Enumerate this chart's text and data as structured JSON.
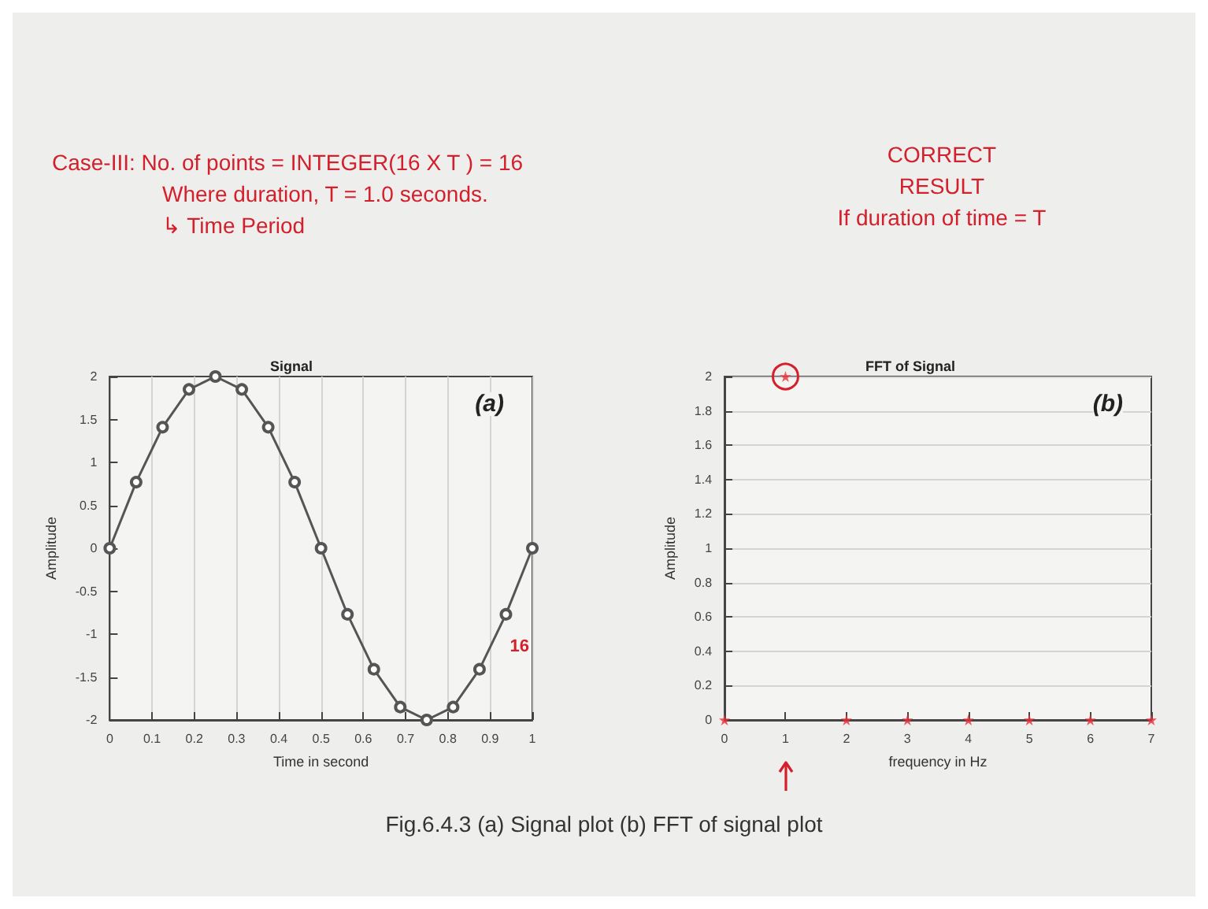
{
  "chart_data": [
    {
      "type": "other",
      "annotations": [
        "Case-III:  No. of points = INTEGER(16 X T ) = 16",
        "Where duration, T = 1.0 seconds.",
        "↳ Time Period"
      ]
    },
    {
      "type": "other",
      "annotations": [
        "CORRECT",
        "RESULT",
        "If duration of time = T"
      ]
    },
    {
      "type": "line",
      "title": "Signal",
      "xlabel": "Time in second",
      "ylabel": "Amplitude",
      "x": [
        0,
        0.0625,
        0.125,
        0.1875,
        0.25,
        0.3125,
        0.375,
        0.4375,
        0.5,
        0.5625,
        0.625,
        0.6875,
        0.75,
        0.8125,
        0.875,
        0.9375,
        1
      ],
      "series": [
        {
          "color": "#555555",
          "values": [
            0,
            0.77,
            1.41,
            1.85,
            2,
            1.85,
            1.41,
            0.77,
            0,
            -0.77,
            -1.41,
            -1.85,
            -2,
            -1.85,
            -1.41,
            -0.77,
            0
          ]
        }
      ],
      "xlim": [
        0,
        1
      ],
      "xticks": [
        0,
        0.1,
        0.2,
        0.3,
        0.4,
        0.5,
        0.6,
        0.7,
        0.8,
        0.9,
        1
      ],
      "ylim": [
        -2,
        2
      ],
      "yticks": [
        -2,
        -1.5,
        -1,
        -0.5,
        0,
        0.5,
        1,
        1.5,
        2
      ],
      "grid": "x",
      "marker": "circle",
      "line_style": "solid",
      "annotations": [
        "(a)",
        "16"
      ]
    },
    {
      "type": "scatter",
      "title": "FFT of Signal",
      "xlabel": "frequency in Hz",
      "ylabel": "Amplitude",
      "x": [
        0,
        1,
        2,
        3,
        4,
        5,
        6,
        7
      ],
      "series": [
        {
          "color": "#e8303a",
          "values": [
            0,
            2,
            0,
            0,
            0,
            0,
            0,
            0
          ]
        }
      ],
      "xlim": [
        0,
        7
      ],
      "xticks": [
        0,
        1,
        2,
        3,
        4,
        5,
        6,
        7
      ],
      "ylim": [
        0,
        2
      ],
      "yticks": [
        0,
        0.2,
        0.4,
        0.6,
        0.8,
        1,
        1.2,
        1.4,
        1.6,
        1.8,
        2
      ],
      "grid": "y",
      "marker": "star",
      "annotations": [
        "(b)"
      ]
    },
    {
      "type": "other",
      "title": "Fig.6.4.3 (a) Signal plot (b) FFT of signal plot"
    }
  ]
}
